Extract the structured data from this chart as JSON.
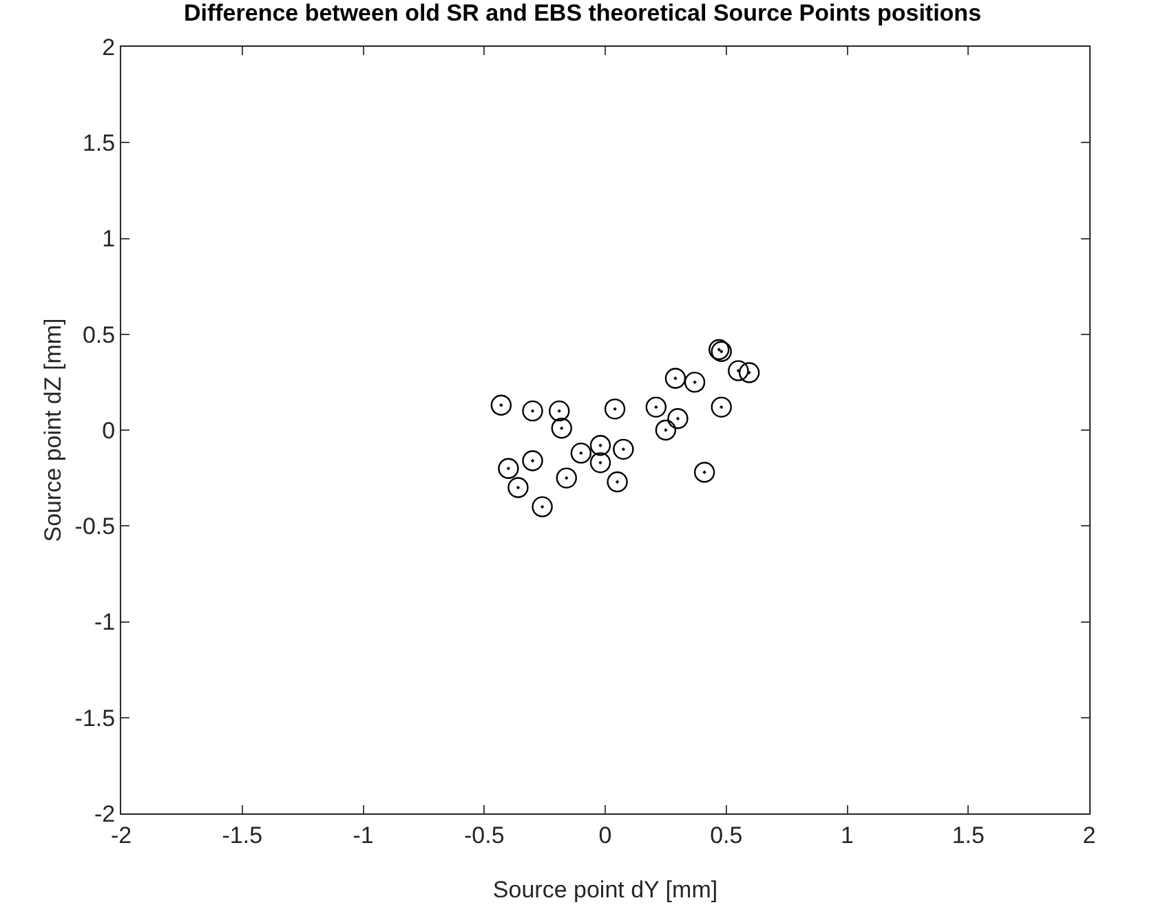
{
  "chart_data": {
    "type": "scatter",
    "title": "Difference between old SR and EBS theoretical Source Points positions",
    "xlabel": "Source point dY [mm]",
    "ylabel": "Source point dZ [mm]",
    "x": [
      -0.43,
      -0.3,
      -0.19,
      -0.18,
      0.04,
      0.21,
      0.3,
      0.25,
      0.29,
      0.37,
      0.47,
      0.48,
      0.55,
      0.595,
      0.48,
      0.41,
      -0.4,
      -0.3,
      -0.36,
      -0.26,
      -0.16,
      -0.1,
      -0.02,
      -0.02,
      0.075,
      0.05
    ],
    "series": [
      {
        "color": "#000000",
        "values": [
          0.13,
          0.1,
          0.1,
          0.01,
          0.11,
          0.12,
          0.06,
          0.0,
          0.27,
          0.25,
          0.42,
          0.41,
          0.31,
          0.3,
          0.12,
          -0.22,
          -0.2,
          -0.16,
          -0.3,
          -0.4,
          -0.25,
          -0.12,
          -0.08,
          -0.17,
          -0.1,
          -0.27
        ]
      }
    ],
    "xlim": [
      -2,
      2
    ],
    "ylim": [
      -2,
      2
    ],
    "xticks": [
      -2,
      -1.5,
      -1,
      -0.5,
      0,
      0.5,
      1,
      1.5,
      2
    ],
    "yticks": [
      -2,
      -1.5,
      -1,
      -0.5,
      0,
      0.5,
      1,
      1.5,
      2
    ],
    "grid": false,
    "marker": "circle"
  }
}
